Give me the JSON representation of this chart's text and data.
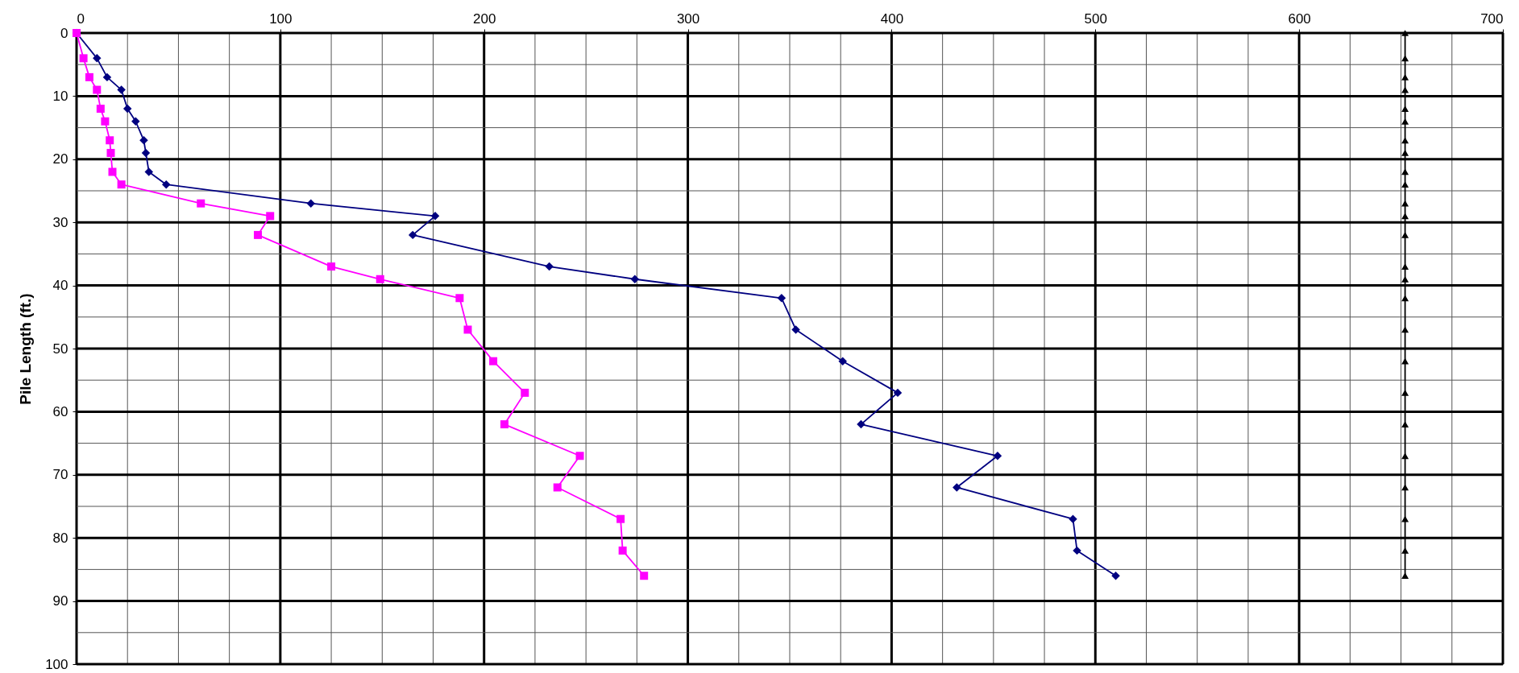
{
  "chart_data": {
    "type": "line",
    "ylabel": "Pile Length (ft.)",
    "xlim": [
      0,
      700
    ],
    "ylim": [
      100,
      0
    ],
    "xticks": [
      0,
      {
        "value": 25,
        "label": null
      },
      {
        "value": 50,
        "label": null
      },
      {
        "value": 75,
        "label": null
      },
      100,
      {
        "value": 125,
        "label": null
      },
      {
        "value": 150,
        "label": null
      },
      {
        "value": 175,
        "label": null
      },
      200,
      {
        "value": 225,
        "label": null
      },
      {
        "value": 250,
        "label": null
      },
      {
        "value": 275,
        "label": null
      },
      300,
      {
        "value": 325,
        "label": null
      },
      {
        "value": 350,
        "label": null
      },
      {
        "value": 375,
        "label": null
      },
      400,
      {
        "value": 425,
        "label": null
      },
      {
        "value": 450,
        "label": null
      },
      {
        "value": 475,
        "label": null
      },
      500,
      {
        "value": 525,
        "label": null
      },
      {
        "value": 550,
        "label": null
      },
      {
        "value": 575,
        "label": null
      },
      600,
      {
        "value": 625,
        "label": null
      },
      {
        "value": 650,
        "label": null
      },
      {
        "value": 675,
        "label": null
      },
      700
    ],
    "yticks": [
      0,
      {
        "value": 5,
        "label": null
      },
      10,
      {
        "value": 15,
        "label": null
      },
      20,
      {
        "value": 25,
        "label": null
      },
      30,
      {
        "value": 35,
        "label": null
      },
      40,
      {
        "value": 45,
        "label": null
      },
      50,
      {
        "value": 55,
        "label": null
      },
      60,
      {
        "value": 65,
        "label": null
      },
      70,
      {
        "value": 75,
        "label": null
      },
      80,
      {
        "value": 85,
        "label": null
      },
      90,
      {
        "value": 95,
        "label": null
      },
      100
    ],
    "grid": true,
    "series": [
      {
        "color": "#000080",
        "marker": "diamond",
        "x": [
          0,
          10,
          15,
          22,
          25,
          29,
          33,
          34,
          35.5,
          44,
          115,
          176,
          165,
          232,
          274,
          346,
          353,
          376,
          403,
          385,
          452,
          432,
          489,
          491,
          510
        ],
        "values": [
          0,
          4,
          7,
          9,
          12,
          14,
          17,
          19,
          22,
          24,
          27,
          29,
          32,
          37,
          39,
          42,
          47,
          52,
          57,
          62,
          67,
          72,
          77,
          82,
          86
        ]
      },
      {
        "color": "#ff00ff",
        "marker": "square",
        "x": [
          0,
          3.4,
          6.3,
          10,
          11.8,
          14,
          16.3,
          16.8,
          17.6,
          22,
          61,
          95,
          89,
          125,
          149,
          188,
          192,
          204.5,
          220,
          210,
          247,
          236,
          267,
          268,
          278.5
        ],
        "values": [
          0,
          4,
          7,
          9,
          12,
          14,
          17,
          19,
          22,
          24,
          27,
          29,
          32,
          37,
          39,
          42,
          47,
          52,
          57,
          62,
          67,
          72,
          77,
          82,
          86
        ]
      },
      {
        "color": "#000000",
        "marker": "triangle",
        "x": [
          652,
          652,
          652,
          652,
          652,
          652,
          652,
          652,
          652,
          652,
          652,
          652,
          652,
          652,
          652,
          652,
          652,
          652,
          652,
          652,
          652,
          652,
          652,
          652,
          652
        ],
        "values": [
          0,
          4,
          7,
          9,
          12,
          14,
          17,
          19,
          22,
          24,
          27,
          29,
          32,
          37,
          39,
          42,
          47,
          52,
          57,
          62,
          67,
          72,
          77,
          82,
          86
        ]
      }
    ]
  }
}
